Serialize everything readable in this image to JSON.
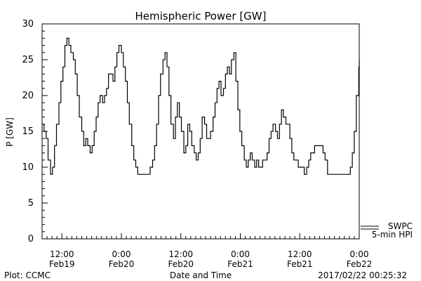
{
  "chart_data": {
    "type": "line",
    "title": "Hemispheric Power [GW]",
    "xlabel": "Date and Time",
    "ylabel": "P [GW]",
    "ylim": [
      0,
      30
    ],
    "yticks": [
      0,
      5,
      10,
      15,
      20,
      25,
      30
    ],
    "xlim_hours": [
      -16,
      48
    ],
    "xticks": [
      {
        "h": -12,
        "time": "12:00",
        "date": "Feb19"
      },
      {
        "h": 0,
        "time": "0:00",
        "date": "Feb20"
      },
      {
        "h": 12,
        "time": "12:00",
        "date": "Feb20"
      },
      {
        "h": 24,
        "time": "0:00",
        "date": "Feb21"
      },
      {
        "h": 36,
        "time": "12:00",
        "date": "Feb21"
      },
      {
        "h": 48,
        "time": "0:00",
        "date": "Feb22"
      }
    ],
    "grid": false,
    "legend": {
      "placement": "bottom-right",
      "entries": [
        "SWPC",
        "5-min HPI"
      ]
    },
    "series": [
      {
        "name": "SWPC",
        "color": "#000000",
        "points": [
          [
            -16.0,
            16
          ],
          [
            -15.6,
            15
          ],
          [
            -15.2,
            14
          ],
          [
            -14.8,
            11
          ],
          [
            -14.3,
            9
          ],
          [
            -13.9,
            10
          ],
          [
            -13.5,
            13
          ],
          [
            -13.1,
            16
          ],
          [
            -12.6,
            19
          ],
          [
            -12.2,
            22
          ],
          [
            -11.8,
            24
          ],
          [
            -11.4,
            27
          ],
          [
            -11.0,
            28
          ],
          [
            -10.6,
            27
          ],
          [
            -10.2,
            26
          ],
          [
            -9.7,
            25
          ],
          [
            -9.3,
            23
          ],
          [
            -8.9,
            20
          ],
          [
            -8.5,
            17
          ],
          [
            -8.0,
            15
          ],
          [
            -7.6,
            13
          ],
          [
            -7.2,
            14
          ],
          [
            -6.8,
            13
          ],
          [
            -6.3,
            12
          ],
          [
            -5.9,
            13
          ],
          [
            -5.5,
            15
          ],
          [
            -5.1,
            17
          ],
          [
            -4.7,
            19
          ],
          [
            -4.3,
            20
          ],
          [
            -3.8,
            19
          ],
          [
            -3.4,
            20
          ],
          [
            -3.0,
            21
          ],
          [
            -2.6,
            23
          ],
          [
            -2.1,
            23
          ],
          [
            -1.7,
            22
          ],
          [
            -1.3,
            24
          ],
          [
            -0.9,
            26
          ],
          [
            -0.5,
            27
          ],
          [
            0.0,
            26
          ],
          [
            0.4,
            24
          ],
          [
            0.8,
            22
          ],
          [
            1.2,
            19
          ],
          [
            1.6,
            16
          ],
          [
            2.1,
            13
          ],
          [
            2.5,
            11
          ],
          [
            2.9,
            10
          ],
          [
            3.3,
            9
          ],
          [
            3.7,
            9
          ],
          [
            4.2,
            9
          ],
          [
            4.6,
            9
          ],
          [
            5.0,
            9
          ],
          [
            5.4,
            9
          ],
          [
            5.8,
            10
          ],
          [
            6.3,
            11
          ],
          [
            6.7,
            13
          ],
          [
            7.1,
            16
          ],
          [
            7.5,
            20
          ],
          [
            7.9,
            23
          ],
          [
            8.4,
            25
          ],
          [
            8.8,
            26
          ],
          [
            9.2,
            24
          ],
          [
            9.6,
            20
          ],
          [
            10.0,
            16
          ],
          [
            10.5,
            14
          ],
          [
            10.9,
            17
          ],
          [
            11.3,
            19
          ],
          [
            11.7,
            17
          ],
          [
            12.1,
            15
          ],
          [
            12.6,
            12
          ],
          [
            13.0,
            13
          ],
          [
            13.4,
            16
          ],
          [
            13.8,
            15
          ],
          [
            14.2,
            13
          ],
          [
            14.7,
            12
          ],
          [
            15.1,
            11
          ],
          [
            15.5,
            12
          ],
          [
            15.9,
            14
          ],
          [
            16.3,
            17
          ],
          [
            16.8,
            16
          ],
          [
            17.2,
            14
          ],
          [
            17.6,
            14
          ],
          [
            18.0,
            15
          ],
          [
            18.5,
            17
          ],
          [
            18.9,
            19
          ],
          [
            19.3,
            21
          ],
          [
            19.7,
            22
          ],
          [
            20.1,
            20
          ],
          [
            20.6,
            21
          ],
          [
            21.0,
            23
          ],
          [
            21.4,
            24
          ],
          [
            21.8,
            23
          ],
          [
            22.2,
            25
          ],
          [
            22.7,
            26
          ],
          [
            23.1,
            22
          ],
          [
            23.5,
            18
          ],
          [
            23.9,
            15
          ],
          [
            24.3,
            13
          ],
          [
            24.8,
            11
          ],
          [
            25.2,
            10
          ],
          [
            25.6,
            11
          ],
          [
            26.0,
            12
          ],
          [
            26.4,
            11
          ],
          [
            26.9,
            10
          ],
          [
            27.3,
            11
          ],
          [
            27.7,
            10
          ],
          [
            28.1,
            10
          ],
          [
            28.5,
            11
          ],
          [
            29.0,
            11
          ],
          [
            29.4,
            12
          ],
          [
            29.8,
            14
          ],
          [
            30.2,
            15
          ],
          [
            30.6,
            16
          ],
          [
            31.1,
            15
          ],
          [
            31.5,
            14
          ],
          [
            31.9,
            16
          ],
          [
            32.3,
            18
          ],
          [
            32.7,
            17
          ],
          [
            33.2,
            16
          ],
          [
            33.6,
            16
          ],
          [
            34.0,
            14
          ],
          [
            34.4,
            12
          ],
          [
            34.8,
            11
          ],
          [
            35.3,
            11
          ],
          [
            35.7,
            10
          ],
          [
            36.1,
            10
          ],
          [
            36.5,
            10
          ],
          [
            36.9,
            9
          ],
          [
            37.4,
            10
          ],
          [
            37.8,
            11
          ],
          [
            38.2,
            12
          ],
          [
            38.6,
            12
          ],
          [
            39.0,
            13
          ],
          [
            39.5,
            13
          ],
          [
            39.9,
            13
          ],
          [
            40.3,
            13
          ],
          [
            40.7,
            12
          ],
          [
            41.1,
            11
          ],
          [
            41.6,
            9
          ],
          [
            42.0,
            9
          ],
          [
            42.4,
            9
          ],
          [
            42.8,
            9
          ],
          [
            43.2,
            9
          ],
          [
            43.7,
            9
          ],
          [
            44.1,
            9
          ],
          [
            44.5,
            9
          ],
          [
            44.9,
            9
          ],
          [
            45.3,
            9
          ],
          [
            45.8,
            9
          ],
          [
            46.2,
            10
          ],
          [
            46.6,
            12
          ],
          [
            47.0,
            15
          ],
          [
            47.4,
            20
          ],
          [
            47.9,
            24
          ],
          [
            48.0,
            25
          ]
        ]
      },
      {
        "name": "5-min HPI",
        "color": "#000000",
        "points": []
      }
    ]
  },
  "footer": {
    "left": "Plot: CCMC",
    "right": "2017/02/22 00:25:32"
  }
}
